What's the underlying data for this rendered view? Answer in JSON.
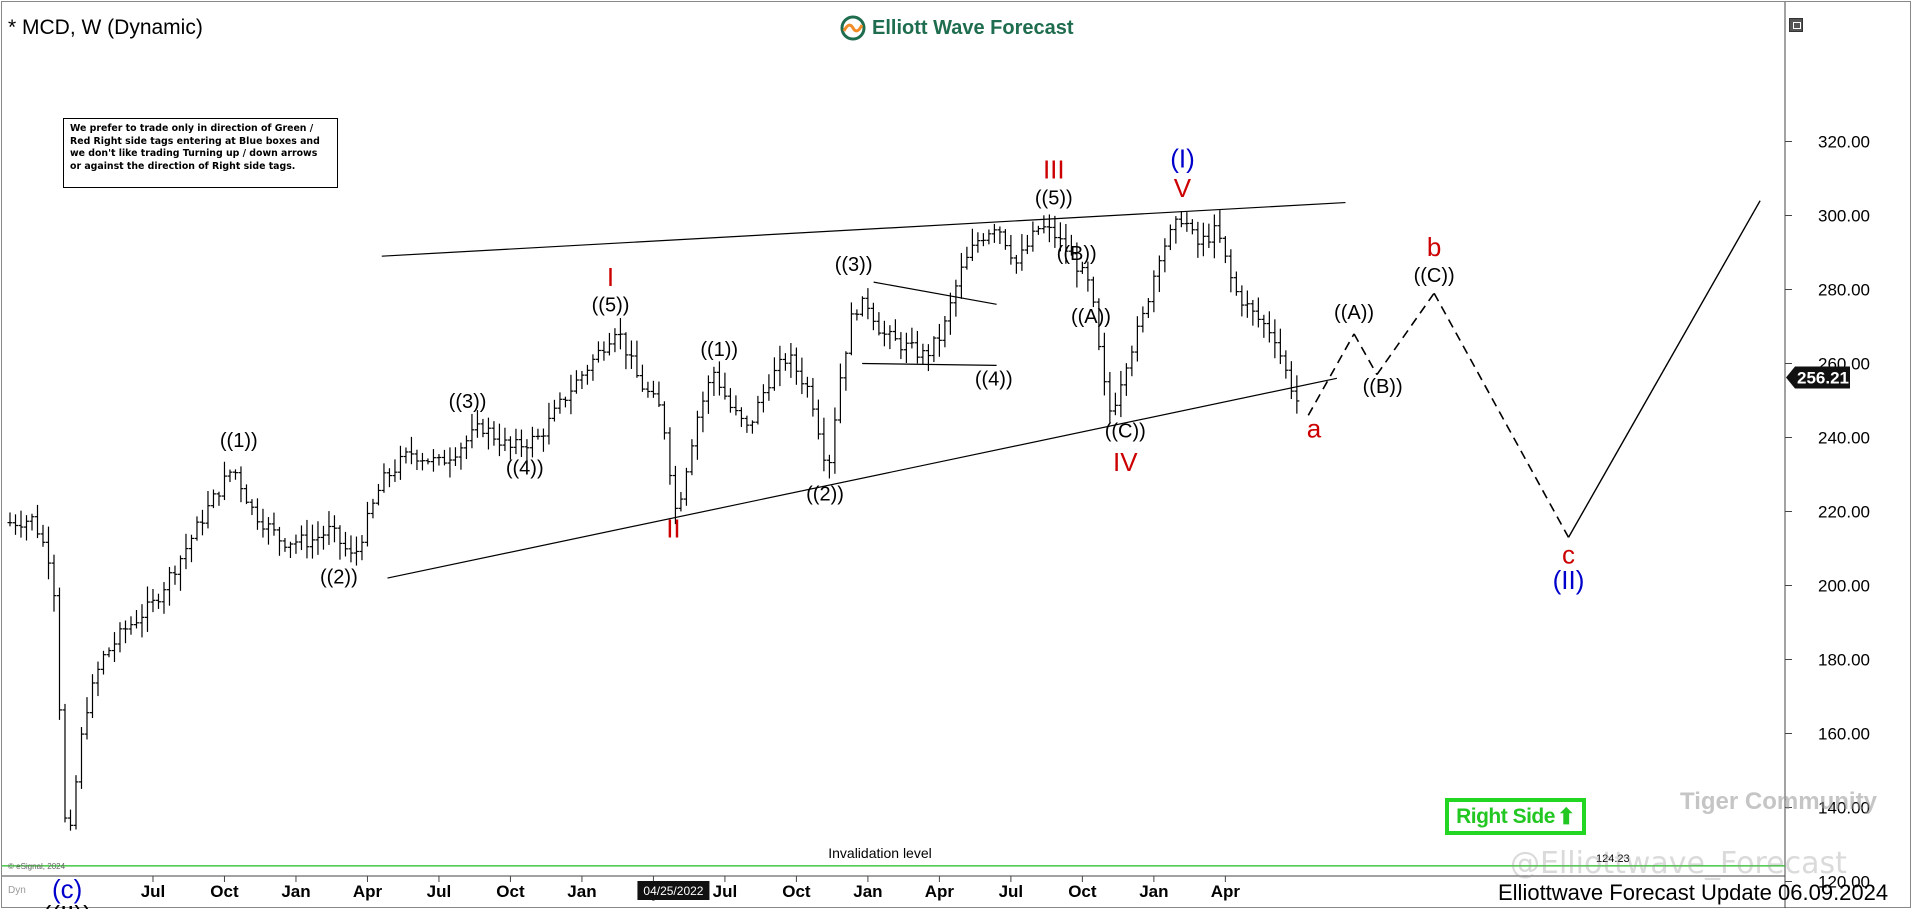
{
  "title": "* MCD, W (Dynamic)",
  "brand": "Elliott Wave Forecast",
  "note": "We prefer to trade only in direction of Green / Red Right side tags entering at Blue boxes and we don't like trading Turning up / down arrows or against the direction of Right side tags.",
  "right_side": {
    "label": "Right Side",
    "color": "#22d622"
  },
  "footer": "Elliottwave Forecast Update 06.09.2024",
  "esignal": "© eSignal, 2024",
  "dyn": "Dyn",
  "watermark": "@Elliottwave_Forecast",
  "tiger": "Tiger Community",
  "chart_data": {
    "type": "ohlc",
    "symbol": "MCD",
    "interval": "Weekly",
    "ylim": [
      100,
      330
    ],
    "y_ticks": [
      "320.00",
      "300.00",
      "280.00",
      "260.00",
      "240.00",
      "220.00",
      "200.00",
      "180.00",
      "160.00",
      "140.00",
      "120.00"
    ],
    "x_ticks": [
      "Jul",
      "Oct",
      "Jan",
      "Apr",
      "Jul",
      "Oct",
      "Jan",
      "Apr",
      "Jul",
      "Oct",
      "Jan",
      "Apr",
      "Jul",
      "Oct",
      "Jan",
      "Apr"
    ],
    "crosshair_date": "04/25/2022",
    "last_price": "256.21",
    "invalidation": {
      "label": "Invalidation level",
      "value": 124.23,
      "value_label": "124.23",
      "color": "#22bb22"
    },
    "price_path": [
      [
        2020.0,
        217
      ],
      [
        2020.08,
        218
      ],
      [
        2020.15,
        205
      ],
      [
        2020.2,
        124
      ],
      [
        2020.22,
        140
      ],
      [
        2020.26,
        165
      ],
      [
        2020.32,
        180
      ],
      [
        2020.4,
        188
      ],
      [
        2020.5,
        195
      ],
      [
        2020.6,
        208
      ],
      [
        2020.7,
        222
      ],
      [
        2020.78,
        232
      ],
      [
        2020.85,
        220
      ],
      [
        2020.95,
        212
      ],
      [
        2021.05,
        212
      ],
      [
        2021.12,
        215
      ],
      [
        2021.2,
        207
      ],
      [
        2021.3,
        228
      ],
      [
        2021.4,
        236
      ],
      [
        2021.5,
        233
      ],
      [
        2021.58,
        238
      ],
      [
        2021.65,
        243
      ],
      [
        2021.75,
        237
      ],
      [
        2021.85,
        240
      ],
      [
        2021.95,
        252
      ],
      [
        2022.05,
        262
      ],
      [
        2022.12,
        270
      ],
      [
        2022.2,
        255
      ],
      [
        2022.28,
        247
      ],
      [
        2022.33,
        219
      ],
      [
        2022.4,
        245
      ],
      [
        2022.46,
        258
      ],
      [
        2022.52,
        248
      ],
      [
        2022.58,
        242
      ],
      [
        2022.65,
        255
      ],
      [
        2022.72,
        262
      ],
      [
        2022.8,
        252
      ],
      [
        2022.86,
        231
      ],
      [
        2022.9,
        255
      ],
      [
        2022.95,
        275
      ],
      [
        2023.0,
        276
      ],
      [
        2023.05,
        268
      ],
      [
        2023.12,
        265
      ],
      [
        2023.2,
        262
      ],
      [
        2023.26,
        268
      ],
      [
        2023.32,
        284
      ],
      [
        2023.38,
        293
      ],
      [
        2023.45,
        298
      ],
      [
        2023.52,
        287
      ],
      [
        2023.6,
        297
      ],
      [
        2023.65,
        295
      ],
      [
        2023.72,
        288
      ],
      [
        2023.78,
        280
      ],
      [
        2023.82,
        256
      ],
      [
        2023.85,
        246
      ],
      [
        2023.9,
        260
      ],
      [
        2023.96,
        272
      ],
      [
        2024.02,
        290
      ],
      [
        2024.1,
        300
      ],
      [
        2024.15,
        292
      ],
      [
        2024.22,
        296
      ],
      [
        2024.28,
        280
      ],
      [
        2024.35,
        273
      ],
      [
        2024.42,
        268
      ],
      [
        2024.46,
        258
      ],
      [
        2024.5,
        250
      ],
      [
        2024.51,
        252
      ]
    ],
    "projection": [
      [
        2024.54,
        246
      ],
      [
        2024.7,
        268
      ],
      [
        2024.78,
        257
      ],
      [
        2024.98,
        279
      ],
      [
        2025.45,
        213
      ],
      [
        2026.12,
        304
      ]
    ],
    "trendlines": [
      [
        [
          2021.3,
          289
        ],
        [
          2024.67,
          303.5
        ]
      ],
      [
        [
          2021.32,
          202
        ],
        [
          2024.64,
          256
        ]
      ],
      [
        [
          2023.02,
          282
        ],
        [
          2023.45,
          276
        ]
      ],
      [
        [
          2022.98,
          260
        ],
        [
          2023.45,
          259.5
        ]
      ]
    ],
    "wave_labels": [
      {
        "text": "(c)",
        "x": 2020.2,
        "y": 115.5,
        "color": "#0000cc",
        "size": 26
      },
      {
        "text": "((II))",
        "x": 2020.2,
        "y": 108.5,
        "color": "#000000",
        "size": 26
      },
      {
        "text": "((1))",
        "x": 2020.8,
        "y": 237.5,
        "color": "#000000",
        "size": 20
      },
      {
        "text": "((2))",
        "x": 2021.15,
        "y": 200.5,
        "color": "#000000",
        "size": 20
      },
      {
        "text": "((3))",
        "x": 2021.6,
        "y": 248,
        "color": "#000000",
        "size": 20
      },
      {
        "text": "((4))",
        "x": 2021.8,
        "y": 230,
        "color": "#000000",
        "size": 20
      },
      {
        "text": "((5))",
        "x": 2022.1,
        "y": 274,
        "color": "#000000",
        "size": 20
      },
      {
        "text": "I",
        "x": 2022.1,
        "y": 281,
        "color": "#cc0000",
        "size": 26
      },
      {
        "text": "II",
        "x": 2022.32,
        "y": 213,
        "color": "#cc0000",
        "size": 26
      },
      {
        "text": "((1))",
        "x": 2022.48,
        "y": 262,
        "color": "#000000",
        "size": 20
      },
      {
        "text": "((2))",
        "x": 2022.85,
        "y": 223,
        "color": "#000000",
        "size": 20
      },
      {
        "text": "((3))",
        "x": 2022.95,
        "y": 285,
        "color": "#000000",
        "size": 20
      },
      {
        "text": "((4))",
        "x": 2023.44,
        "y": 254,
        "color": "#000000",
        "size": 20
      },
      {
        "text": "((5))",
        "x": 2023.65,
        "y": 303,
        "color": "#000000",
        "size": 20
      },
      {
        "text": "III",
        "x": 2023.65,
        "y": 310,
        "color": "#cc0000",
        "size": 26
      },
      {
        "text": "((B))",
        "x": 2023.73,
        "y": 288,
        "color": "#000000",
        "size": 20
      },
      {
        "text": "((A))",
        "x": 2023.78,
        "y": 271,
        "color": "#000000",
        "size": 20
      },
      {
        "text": "((C))",
        "x": 2023.9,
        "y": 240,
        "color": "#000000",
        "size": 20
      },
      {
        "text": "IV",
        "x": 2023.9,
        "y": 231,
        "color": "#cc0000",
        "size": 26
      },
      {
        "text": "V",
        "x": 2024.1,
        "y": 305,
        "color": "#cc0000",
        "size": 26
      },
      {
        "text": "(I)",
        "x": 2024.1,
        "y": 313,
        "color": "#0000cc",
        "size": 26
      },
      {
        "text": "a",
        "x": 2024.56,
        "y": 240,
        "color": "#cc0000",
        "size": 26
      },
      {
        "text": "((A))",
        "x": 2024.7,
        "y": 272,
        "color": "#000000",
        "size": 20
      },
      {
        "text": "((B))",
        "x": 2024.8,
        "y": 252,
        "color": "#000000",
        "size": 20
      },
      {
        "text": "((C))",
        "x": 2024.98,
        "y": 282,
        "color": "#000000",
        "size": 20
      },
      {
        "text": "b",
        "x": 2024.98,
        "y": 289,
        "color": "#cc0000",
        "size": 26
      },
      {
        "text": "c",
        "x": 2025.45,
        "y": 206,
        "color": "#cc0000",
        "size": 26
      },
      {
        "text": "(II)",
        "x": 2025.45,
        "y": 199,
        "color": "#0000cc",
        "size": 26
      }
    ]
  }
}
